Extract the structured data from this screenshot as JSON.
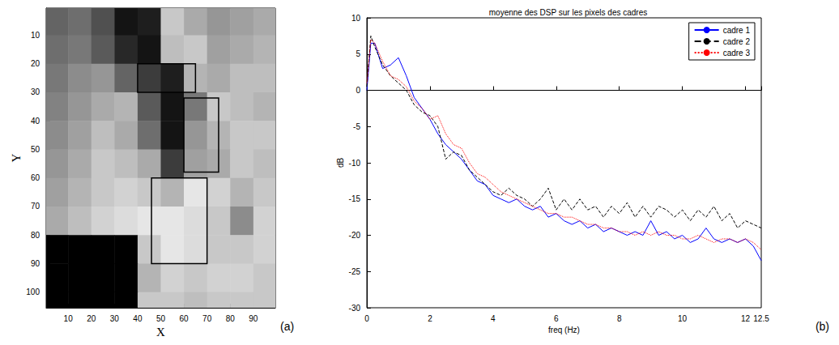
{
  "chart_data": [
    {
      "type": "image",
      "label": "(a)",
      "xlabel": "X",
      "ylabel": "Y",
      "xlim": [
        0.5,
        99.5
      ],
      "xticks": [
        10,
        20,
        30,
        40,
        50,
        60,
        70,
        80,
        90
      ],
      "ylim": [
        105.5,
        0.5
      ],
      "yticks": [
        10,
        20,
        30,
        40,
        50,
        60,
        70,
        80,
        90,
        100
      ],
      "grid": false,
      "cells_x": [
        5,
        15,
        25,
        35,
        45,
        55,
        65,
        75,
        85,
        95
      ],
      "cells_y": [
        5,
        15,
        25,
        35,
        45,
        55,
        65,
        75,
        85,
        95,
        105
      ],
      "cells": [
        [
          100,
          110,
          80,
          20,
          30,
          200,
          170,
          150,
          160,
          170
        ],
        [
          110,
          120,
          90,
          40,
          20,
          190,
          200,
          160,
          170,
          180
        ],
        [
          120,
          140,
          150,
          100,
          60,
          30,
          180,
          170,
          190,
          190
        ],
        [
          130,
          150,
          170,
          180,
          90,
          20,
          120,
          200,
          190,
          180
        ],
        [
          140,
          160,
          190,
          170,
          110,
          20,
          150,
          180,
          200,
          200
        ],
        [
          150,
          170,
          200,
          190,
          170,
          60,
          160,
          170,
          200,
          190
        ],
        [
          160,
          180,
          200,
          210,
          200,
          180,
          230,
          210,
          180,
          200
        ],
        [
          170,
          190,
          210,
          220,
          230,
          230,
          220,
          200,
          140,
          210
        ],
        [
          0,
          0,
          0,
          0,
          200,
          230,
          220,
          200,
          200,
          210
        ],
        [
          0,
          0,
          0,
          0,
          180,
          210,
          200,
          210,
          210,
          200
        ],
        [
          0,
          0,
          0,
          0,
          200,
          200,
          190,
          200,
          200,
          200
        ]
      ],
      "frames": [
        {
          "x": [
            40,
            65
          ],
          "y": [
            20,
            30
          ]
        },
        {
          "x": [
            60,
            75
          ],
          "y": [
            32,
            58
          ]
        },
        {
          "x": [
            46,
            70
          ],
          "y": [
            60,
            90
          ]
        }
      ]
    },
    {
      "type": "line",
      "label": "(b)",
      "title": "moyenne des DSP sur les pixels des cadres",
      "xlabel": "freq (Hz)",
      "ylabel": "dB",
      "xlim": [
        0,
        12.5
      ],
      "xticks": [
        0,
        2,
        4,
        6,
        8,
        10,
        12
      ],
      "ylim": [
        -30,
        10
      ],
      "yticks": [
        -30,
        -25,
        -20,
        -15,
        -10,
        -5,
        0,
        5,
        10
      ],
      "grid": false,
      "legend": "upper right",
      "x": [
        0,
        0.125,
        0.25,
        0.5,
        0.75,
        1,
        1.25,
        1.5,
        1.75,
        2,
        2.25,
        2.5,
        2.75,
        3,
        3.25,
        3.5,
        3.75,
        4,
        4.25,
        4.5,
        4.75,
        5,
        5.25,
        5.5,
        5.75,
        6,
        6.25,
        6.5,
        6.75,
        7,
        7.25,
        7.5,
        7.75,
        8,
        8.25,
        8.5,
        8.75,
        9,
        9.25,
        9.5,
        9.75,
        10,
        10.25,
        10.5,
        10.75,
        11,
        11.25,
        11.5,
        11.75,
        12,
        12.25,
        12.5
      ],
      "series": [
        {
          "name": "cadre 1",
          "color": "#0000ff",
          "line_style": "solid",
          "values": [
            0,
            6.5,
            6.5,
            3,
            3.5,
            4.5,
            2,
            -1,
            -2.5,
            -4,
            -6,
            -7.5,
            -8.5,
            -9.5,
            -11,
            -12.5,
            -13,
            -14.5,
            -15,
            -15.5,
            -15,
            -16,
            -16.5,
            -16,
            -17.5,
            -17,
            -18,
            -18.5,
            -18,
            -19,
            -18.5,
            -19.5,
            -19,
            -19.5,
            -20,
            -19.5,
            -20,
            -18,
            -20,
            -19.5,
            -20.5,
            -20,
            -21,
            -20.5,
            -19,
            -20.5,
            -21,
            -20.5,
            -21,
            -20.5,
            -21.5,
            -23.5
          ]
        },
        {
          "name": "cadre 2",
          "color": "#000000",
          "line_style": "dashed",
          "values": [
            0.5,
            7.5,
            6,
            3.5,
            2,
            1,
            0,
            -2,
            -3,
            -3.5,
            -5,
            -9.5,
            -8.5,
            -9,
            -11,
            -12,
            -13,
            -14,
            -14.5,
            -13.5,
            -14.5,
            -15,
            -16,
            -15,
            -13.5,
            -16.5,
            -15,
            -16.5,
            -15,
            -16.5,
            -16,
            -17.5,
            -16,
            -17,
            -15.5,
            -17.5,
            -16,
            -17.5,
            -16,
            -16.5,
            -17.5,
            -16.5,
            -18,
            -16.5,
            -17.5,
            -16,
            -18,
            -17,
            -19,
            -18,
            -18.5,
            -19
          ]
        },
        {
          "name": "cadre 3",
          "color": "#ff0000",
          "line_style": "dotted",
          "values": [
            1,
            7,
            6.5,
            4,
            2,
            1.5,
            0.5,
            -1.5,
            -2.5,
            -4,
            -3.5,
            -6,
            -7.5,
            -8,
            -10,
            -11.5,
            -12,
            -13,
            -14,
            -14.5,
            -15,
            -15.5,
            -16,
            -16.5,
            -17,
            -17,
            -17.5,
            -17.5,
            -18,
            -18.5,
            -18.5,
            -19,
            -19,
            -19.5,
            -19.5,
            -20,
            -19.5,
            -20,
            -19.5,
            -20,
            -20,
            -20.5,
            -20.5,
            -20,
            -20.5,
            -21,
            -20.5,
            -20.5,
            -21,
            -20.5,
            -21,
            -22
          ]
        }
      ]
    }
  ]
}
